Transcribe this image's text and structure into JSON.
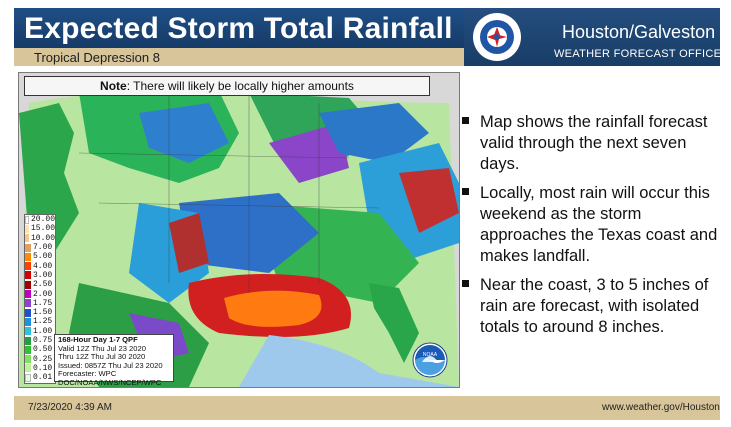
{
  "header": {
    "title": "Expected Storm Total Rainfall",
    "subtitle": "Tropical Depression 8",
    "office_name": "Houston/Galveston",
    "office_sub": "WEATHER FORECAST OFFICE",
    "logo_text": "NATIONAL WEATHER SERVICE"
  },
  "map": {
    "note_label": "Note",
    "note_text": ": There will likely be locally higher amounts",
    "legend": [
      {
        "value": "20.00",
        "color": "#fefefe"
      },
      {
        "value": "15.00",
        "color": "#ffe1b4"
      },
      {
        "value": "10.00",
        "color": "#f4c88e"
      },
      {
        "value": "7.00",
        "color": "#e0a060"
      },
      {
        "value": "5.00",
        "color": "#ff8c00"
      },
      {
        "value": "4.00",
        "color": "#ff4000"
      },
      {
        "value": "3.00",
        "color": "#d40000"
      },
      {
        "value": "2.50",
        "color": "#a00000"
      },
      {
        "value": "2.00",
        "color": "#c000c0"
      },
      {
        "value": "1.75",
        "color": "#9040d0"
      },
      {
        "value": "1.50",
        "color": "#2050d0"
      },
      {
        "value": "1.25",
        "color": "#2090e0"
      },
      {
        "value": "1.00",
        "color": "#30c0e0"
      },
      {
        "value": "0.75",
        "color": "#20a040"
      },
      {
        "value": "0.50",
        "color": "#30c030"
      },
      {
        "value": "0.25",
        "color": "#80e060"
      },
      {
        "value": "0.10",
        "color": "#c0f0a0"
      },
      {
        "value": "0.01",
        "color": "#e0ffe0"
      }
    ],
    "info": {
      "line1": "168-Hour Day 1-7 QPF",
      "line2": "Valid 12Z Thu Jul 23 2020",
      "line3": "Thru 12Z Thu Jul 30 2020",
      "line4": "Issued: 0857Z Thu Jul 23 2020",
      "line5": "Forecaster: WPC",
      "line6": "DOC/NOAA/NWS/NCEP/WPC"
    },
    "noaa_label": "NOAA"
  },
  "bullets": [
    "Map shows the rainfall forecast valid through the next seven days.",
    "Locally, most rain will occur this weekend as the storm approaches the Texas coast and makes landfall.",
    "Near the coast, 3 to 5 inches of rain are forecast, with isolated totals to around 8 inches."
  ],
  "footer": {
    "date": "7/23/2020 4:39 AM",
    "url": "www.weather.gov/Houston"
  }
}
